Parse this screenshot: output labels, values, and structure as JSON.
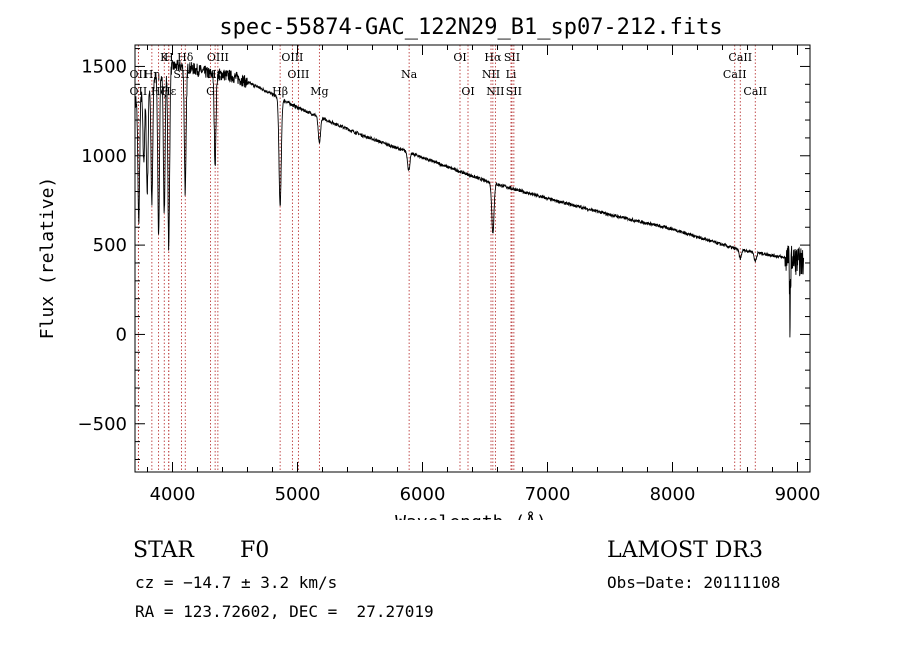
{
  "chart_data": {
    "type": "line",
    "title": "spec-55874-GAC_122N29_B1_sp07-212.fits",
    "xlabel": "Wavelength (Å)",
    "ylabel": "Flux (relative)",
    "xlim": [
      3700,
      9100
    ],
    "ylim": [
      -770,
      1620
    ],
    "xticks": [
      4000,
      5000,
      6000,
      7000,
      8000,
      9000
    ],
    "yticks": [
      -500,
      0,
      500,
      1000,
      1500
    ],
    "series": [
      {
        "name": "flux",
        "continuum": [
          [
            3700,
            1300
          ],
          [
            3800,
            1400
          ],
          [
            3900,
            1470
          ],
          [
            4000,
            1500
          ],
          [
            4100,
            1500
          ],
          [
            4200,
            1480
          ],
          [
            4300,
            1460
          ],
          [
            4400,
            1455
          ],
          [
            4500,
            1440
          ],
          [
            4700,
            1380
          ],
          [
            5000,
            1270
          ],
          [
            5500,
            1120
          ],
          [
            6000,
            990
          ],
          [
            6500,
            860
          ],
          [
            7000,
            760
          ],
          [
            7500,
            670
          ],
          [
            8000,
            590
          ],
          [
            8500,
            480
          ],
          [
            8900,
            430
          ],
          [
            9050,
            400
          ]
        ],
        "absorption_lines": [
          {
            "wave": 3730,
            "depth": 700
          },
          {
            "wave": 3770,
            "depth": 400
          },
          {
            "wave": 3798,
            "depth": 600
          },
          {
            "wave": 3835,
            "depth": 700
          },
          {
            "wave": 3889,
            "depth": 900
          },
          {
            "wave": 3934,
            "depth": 800
          },
          {
            "wave": 3970,
            "depth": 1000
          },
          {
            "wave": 4102,
            "depth": 700
          },
          {
            "wave": 4341,
            "depth": 500
          },
          {
            "wave": 4861,
            "depth": 600
          },
          {
            "wave": 5175,
            "depth": 150
          },
          {
            "wave": 5890,
            "depth": 100
          },
          {
            "wave": 6563,
            "depth": 280
          },
          {
            "wave": 8542,
            "depth": 50
          },
          {
            "wave": 8662,
            "depth": 50
          }
        ]
      }
    ],
    "line_markers": [
      {
        "label": "Hδ",
        "wave": 4102,
        "row": 1
      },
      {
        "label": "K",
        "wave": 3934,
        "row": 1
      },
      {
        "label": "H",
        "wave": 3970,
        "row": 1
      },
      {
        "label": "OII",
        "wave": 3727,
        "row": 2
      },
      {
        "label": "Hη",
        "wave": 3835,
        "row": 2
      },
      {
        "label": "SII",
        "wave": 4072,
        "row": 2
      },
      {
        "label": "OII",
        "wave": 3727,
        "row": 3
      },
      {
        "label": "Hζ",
        "wave": 3889,
        "row": 3
      },
      {
        "label": "Hε",
        "wave": 3970,
        "row": 3
      },
      {
        "label": "OIII",
        "wave": 4363,
        "row": 1
      },
      {
        "label": "Hγ",
        "wave": 4341,
        "row": 2
      },
      {
        "label": "G",
        "wave": 4304,
        "row": 3
      },
      {
        "label": "OIII",
        "wave": 4959,
        "row": 1
      },
      {
        "label": "OIII",
        "wave": 5007,
        "row": 2
      },
      {
        "label": "Hβ",
        "wave": 4861,
        "row": 3
      },
      {
        "label": "Mg",
        "wave": 5175,
        "row": 3
      },
      {
        "label": "Na",
        "wave": 5893,
        "row": 2
      },
      {
        "label": "OI",
        "wave": 6300,
        "row": 1
      },
      {
        "label": "OI",
        "wave": 6364,
        "row": 3
      },
      {
        "label": "Hα",
        "wave": 6563,
        "row": 1
      },
      {
        "label": "SII",
        "wave": 6716,
        "row": 1
      },
      {
        "label": "NII",
        "wave": 6548,
        "row": 2
      },
      {
        "label": "Li",
        "wave": 6708,
        "row": 2
      },
      {
        "label": "NII",
        "wave": 6583,
        "row": 3
      },
      {
        "label": "SII",
        "wave": 6731,
        "row": 3
      },
      {
        "label": "CaII",
        "wave": 8542,
        "row": 1
      },
      {
        "label": "CaII",
        "wave": 8498,
        "row": 2
      },
      {
        "label": "CaII",
        "wave": 8662,
        "row": 3
      }
    ]
  },
  "info": {
    "class": "STAR",
    "subclass": "F0",
    "survey": "LAMOST DR3",
    "redshift": "cz = −14.7 ± 3.2 km/s",
    "obs_date": "Obs−Date: 20111108",
    "coords": "RA = 123.72602, DEC =  27.27019"
  },
  "colors": {
    "marker": "#b22222",
    "trace": "#000000",
    "axes": "#000000"
  }
}
